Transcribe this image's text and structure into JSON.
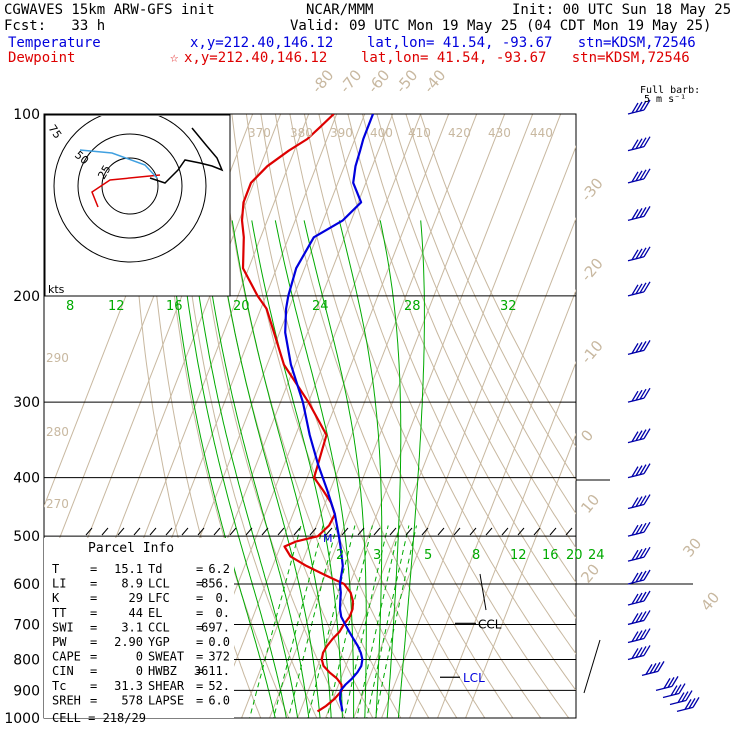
{
  "header": {
    "title": "CGWAVES 15km ARW-GFS init",
    "org": "NCAR/MMM",
    "init": "Init: 00 UTC Sun 18 May 25",
    "fcst": "Fcst:   33 h",
    "valid": "Valid: 09 UTC Mon 19 May 25 (04 CDT Mon 19 May 25)",
    "temp_label": "Temperature",
    "temp_loc": "x,y=212.40,146.12    lat,lon= 41.54, -93.67   stn=KDSM,72546",
    "dew_label": "Dewpoint",
    "dew_marker": "☆",
    "dew_loc": "x,y=212.40,146.12    lat,lon= 41.54, -93.67   stn=KDSM,72546",
    "barb_label_1": "Full barb:",
    "barb_label_2": "5 m s⁻¹"
  },
  "colors": {
    "temperature": "#0000dd",
    "dewpoint": "#dd0000",
    "isotherm": "#c8b8a0",
    "dry_adiabat": "#c8b8a0",
    "moist_adiabat": "#00aa00",
    "mixing_ratio": "#00aa00",
    "isobar": "#000000",
    "hodo_wind": "#000000",
    "hodo_shear": "#40a0e0"
  },
  "chart_data": {
    "type": "line",
    "yscale": "log",
    "pressure_ticks": [
      "100",
      "200",
      "300",
      "400",
      "500",
      "600",
      "700",
      "800",
      "900",
      "1000"
    ],
    "isotherm_labels": [
      "-80",
      "-70",
      "-60",
      "-50",
      "-40",
      "-30",
      "-20",
      "-10",
      "0",
      "10",
      "20",
      "30",
      "40"
    ],
    "theta_labels": [
      "370",
      "380",
      "390",
      "400",
      "410",
      "420",
      "430",
      "440",
      "290",
      "280",
      "270"
    ],
    "moist_labels": [
      "8",
      "12",
      "16",
      "20",
      "24",
      "28",
      "32"
    ],
    "mixing_labels": [
      "2",
      "3",
      "5",
      "8",
      "12",
      "16",
      "20",
      "24"
    ],
    "series": [
      {
        "pressure": [
          975,
          955,
          930,
          900,
          880,
          860,
          840,
          820,
          800,
          780,
          760,
          740,
          720,
          700,
          680,
          660,
          640,
          620,
          600,
          560,
          520,
          500,
          460,
          420,
          380,
          340,
          300,
          260,
          230,
          210,
          200,
          180,
          160,
          150,
          140,
          130,
          122,
          115,
          110,
          105,
          100
        ],
        "temperature": [
          15.1,
          14.0,
          12.5,
          11.5,
          12.5,
          14.0,
          15.0,
          15.5,
          15.0,
          13.5,
          11.5,
          9.0,
          6.5,
          4.0,
          1.5,
          0.0,
          -1.0,
          -2.0,
          -3.5,
          -5.0,
          -8.5,
          -10.5,
          -15.0,
          -21.0,
          -28.0,
          -35.0,
          -42.0,
          -51.5,
          -58.0,
          -61.0,
          -62.0,
          -63.0,
          -61.0,
          -53.0,
          -49.0,
          -54.5,
          -56.0,
          -56.5,
          -57.0,
          -57.0,
          -57.0
        ]
      },
      {
        "pressure": [
          975,
          955,
          930,
          900,
          880,
          860,
          840,
          820,
          800,
          780,
          760,
          740,
          720,
          700,
          680,
          660,
          640,
          620,
          600,
          580,
          560,
          540,
          520,
          510,
          500,
          480,
          460,
          440,
          420,
          400,
          380,
          360,
          340,
          300,
          260,
          230,
          210,
          200,
          180,
          160,
          150,
          140,
          130,
          122,
          115,
          110,
          105,
          100
        ],
        "dewpoint": [
          6.2,
          8.5,
          10.5,
          12.0,
          11.0,
          8.5,
          5.0,
          2.0,
          0.5,
          0.0,
          0.5,
          1.5,
          3.0,
          3.5,
          4.5,
          4.5,
          3.5,
          1.5,
          -2.0,
          -10.0,
          -18.0,
          -25.0,
          -28.5,
          -25.0,
          -18.0,
          -15.5,
          -15.0,
          -18.0,
          -22.5,
          -27.5,
          -28.0,
          -28.5,
          -29.0,
          -40.0,
          -54.0,
          -62.0,
          -68.0,
          -73.0,
          -82.0,
          -86.0,
          -89.0,
          -91.0,
          -91.0,
          -87.5,
          -82.0,
          -77.0,
          -74.0,
          -71.0
        ]
      }
    ],
    "series_names": [
      "Temperature",
      "Dewpoint"
    ],
    "levels": [
      "CCL",
      "LCL",
      "M"
    ],
    "wind_profile_pressure": [
      100,
      115,
      130,
      150,
      175,
      200,
      250,
      300,
      350,
      400,
      450,
      500,
      550,
      600,
      650,
      700,
      750,
      800,
      850,
      900,
      925,
      950,
      975
    ],
    "hodograph": {
      "type": "line",
      "ring_labels": [
        "75",
        "50",
        "25"
      ],
      "units": "kts"
    }
  },
  "parcel": {
    "title": "Parcel Info",
    "rows": [
      [
        "T",
        "=",
        "15.1",
        "Td",
        "=",
        "6.2"
      ],
      [
        "LI",
        "=",
        "8.9",
        "LCL",
        "=",
        "856."
      ],
      [
        "K",
        "=",
        "29",
        "LFC",
        "=",
        "0."
      ],
      [
        "TT",
        "=",
        "44",
        "EL",
        "=",
        "0."
      ],
      [
        "SWI",
        "=",
        "3.1",
        "CCL",
        "=",
        "697."
      ],
      [
        "PW",
        "=",
        "2.90",
        "YGP",
        "=",
        "0.0"
      ],
      [
        "CAPE",
        "=",
        "0",
        "SWEAT",
        "=",
        "372"
      ],
      [
        "CIN",
        "=",
        "0",
        "HWBZ",
        "=",
        "3611."
      ],
      [
        "Tc",
        "=",
        "31.3",
        "SHEAR",
        "=",
        "52."
      ],
      [
        "SREH",
        "=",
        "578",
        "LAPSE",
        "=",
        "6.0"
      ]
    ],
    "cell": "CELL = 218/29"
  }
}
